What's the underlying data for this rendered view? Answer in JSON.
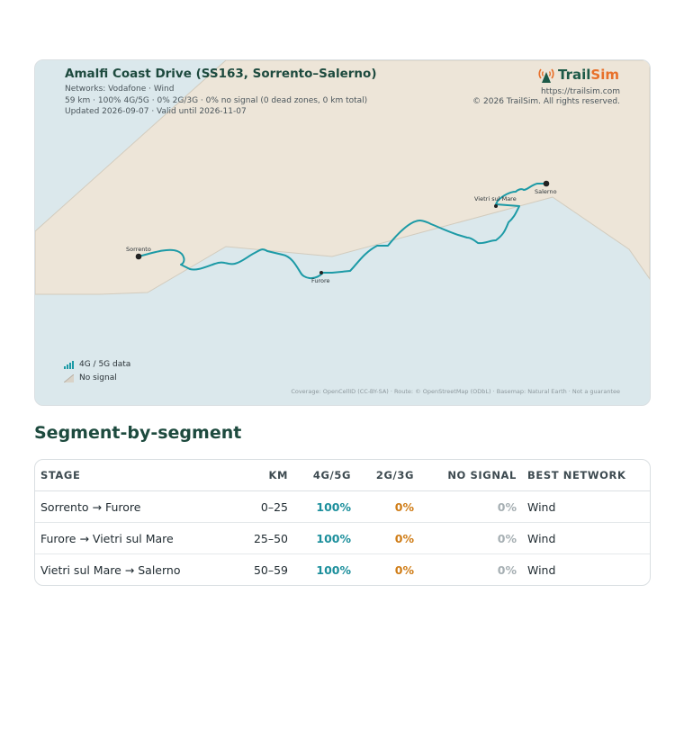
{
  "map": {
    "title": "Amalfi Coast Drive (SS163, Sorrento–Salerno)",
    "networks": "Networks: Vodafone · Wind",
    "stats": "59 km · 100% 4G/5G · 0% 2G/3G · 0% no signal (0 dead zones, 0 km total)",
    "updated": "Updated 2026-09-07 · Valid until 2026-11-07",
    "brand": {
      "name_part1": "Trail",
      "name_part2": "Sim",
      "url": "https://trailsim.com",
      "copyright": "© 2026 TrailSim. All rights reserved."
    },
    "towns": {
      "sorrento": "Sorrento",
      "furore": "Furore",
      "vietri": "Vietri sul Mare",
      "salerno": "Salerno"
    },
    "legend": {
      "data": "4G / 5G data",
      "nosignal": "No signal"
    },
    "attribution": "Coverage: OpenCellID (CC-BY-SA) · Route: © OpenStreetMap (ODbL) · Basemap: Natural Earth · Not a guarantee",
    "colors": {
      "sea": "#dbe8ec",
      "land": "#ede5d8",
      "route_4g": "#1c9aa6",
      "brand_green": "#1d5a48",
      "brand_orange": "#e8702a"
    },
    "icons": {
      "logo": "antenna-tower-icon",
      "data": "signal-bars-icon",
      "nosignal": "no-signal-slash-icon"
    }
  },
  "segments": {
    "title": "Segment-by-segment",
    "headers": {
      "stage": "Stage",
      "km": "km",
      "g4": "4G/5G",
      "g2": "2G/3G",
      "nosignal": "No signal",
      "network": "Best network"
    },
    "rows": [
      {
        "stage": "Sorrento → Furore",
        "km": "0–25",
        "g4": "100%",
        "g2": "0%",
        "nosignal": "0%",
        "network": "Wind"
      },
      {
        "stage": "Furore → Vietri sul Mare",
        "km": "25–50",
        "g4": "100%",
        "g2": "0%",
        "nosignal": "0%",
        "network": "Wind"
      },
      {
        "stage": "Vietri sul Mare → Salerno",
        "km": "50–59",
        "g4": "100%",
        "g2": "0%",
        "nosignal": "0%",
        "network": "Wind"
      }
    ]
  }
}
